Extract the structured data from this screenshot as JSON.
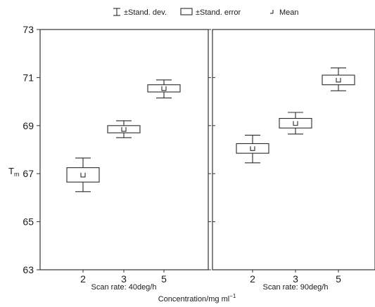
{
  "legend": {
    "std_dev": "±Stand. dev.",
    "std_err": "±Stand. error",
    "mean": "Mean"
  },
  "chart_data": {
    "type": "box",
    "ylabel_main": "T",
    "ylabel_sub": "m",
    "xlabel_main": "Concentration/mg ml",
    "xlabel_sup": "−1",
    "ylim": [
      63,
      73
    ],
    "yticks": [
      "63",
      "65",
      "67",
      "69",
      "71",
      "73"
    ],
    "categories": [
      "2",
      "3",
      "5"
    ],
    "panels": [
      {
        "label": "Scan rate: 40deg/h",
        "groups": [
          {
            "category": "2",
            "mean": 66.95,
            "se_low": 66.65,
            "se_high": 67.25,
            "sd_low": 66.25,
            "sd_high": 67.65
          },
          {
            "category": "3",
            "mean": 68.85,
            "se_low": 68.7,
            "se_high": 69.0,
            "sd_low": 68.5,
            "sd_high": 69.2
          },
          {
            "category": "5",
            "mean": 70.55,
            "se_low": 70.4,
            "se_high": 70.7,
            "sd_low": 70.15,
            "sd_high": 70.9
          }
        ]
      },
      {
        "label": "Scan rate: 90deg/h",
        "groups": [
          {
            "category": "2",
            "mean": 68.05,
            "se_low": 67.85,
            "se_high": 68.25,
            "sd_low": 67.45,
            "sd_high": 68.6
          },
          {
            "category": "3",
            "mean": 69.1,
            "se_low": 68.9,
            "se_high": 69.3,
            "sd_low": 68.65,
            "sd_high": 69.55
          },
          {
            "category": "5",
            "mean": 70.9,
            "se_low": 70.7,
            "se_high": 71.1,
            "sd_low": 70.45,
            "sd_high": 71.4
          }
        ]
      }
    ]
  }
}
